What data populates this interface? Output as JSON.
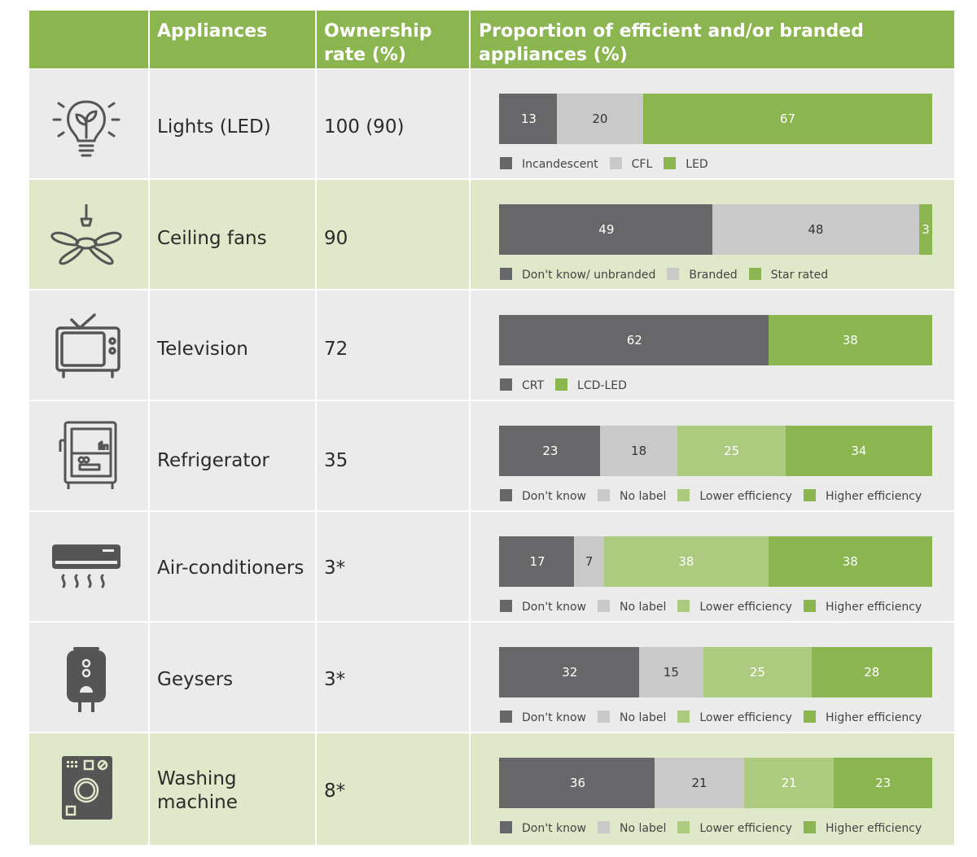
{
  "header": {
    "appliances": "Appliances",
    "ownership": "Ownership rate (%)",
    "proportion": "Proportion of efficient and/or branded appliances (%)"
  },
  "colors": {
    "header_green": "#8ab54f",
    "dark_grey": "#676769",
    "light_grey": "#c9c9c9",
    "light_green": "#accb7e",
    "green": "#8ab54f",
    "row_grey": "#ebebeb",
    "row_green": "#dfe9ca"
  },
  "rows": [
    {
      "name": "Lights (LED)",
      "ownership": "100 (90)",
      "icon": "light-bulb-icon"
    },
    {
      "name": "Ceiling fans",
      "ownership": "90",
      "icon": "ceiling-fan-icon"
    },
    {
      "name": "Television",
      "ownership": "72",
      "icon": "television-icon"
    },
    {
      "name": "Refrigerator",
      "ownership": "35",
      "icon": "refrigerator-icon"
    },
    {
      "name": "Air-conditioners",
      "ownership": "3*",
      "icon": "air-conditioner-icon"
    },
    {
      "name": "Geysers",
      "ownership": "3*",
      "icon": "geyser-icon"
    },
    {
      "name": "Washing machine",
      "ownership": "8*",
      "icon": "washing-machine-icon"
    }
  ],
  "chart_data": [
    {
      "type": "bar",
      "stacked": true,
      "orientation": "horizontal",
      "category": "Lights (LED)",
      "series": [
        {
          "name": "Incandescent",
          "value": 13
        },
        {
          "name": "CFL",
          "value": 20
        },
        {
          "name": "LED",
          "value": 67
        }
      ]
    },
    {
      "type": "bar",
      "stacked": true,
      "orientation": "horizontal",
      "category": "Ceiling fans",
      "series": [
        {
          "name": "Don't know/ unbranded",
          "value": 49
        },
        {
          "name": "Branded",
          "value": 48
        },
        {
          "name": "Star rated",
          "value": 3
        }
      ]
    },
    {
      "type": "bar",
      "stacked": true,
      "orientation": "horizontal",
      "category": "Television",
      "series": [
        {
          "name": "CRT",
          "value": 62
        },
        {
          "name": "LCD-LED",
          "value": 38
        }
      ]
    },
    {
      "type": "bar",
      "stacked": true,
      "orientation": "horizontal",
      "category": "Refrigerator",
      "series": [
        {
          "name": "Don't know",
          "value": 23
        },
        {
          "name": "No label",
          "value": 18
        },
        {
          "name": "Lower efficiency",
          "value": 25
        },
        {
          "name": "Higher efficiency",
          "value": 34
        }
      ]
    },
    {
      "type": "bar",
      "stacked": true,
      "orientation": "horizontal",
      "category": "Air-conditioners",
      "series": [
        {
          "name": "Don't know",
          "value": 17
        },
        {
          "name": "No label",
          "value": 7
        },
        {
          "name": "Lower efficiency",
          "value": 38
        },
        {
          "name": "Higher efficiency",
          "value": 38
        }
      ]
    },
    {
      "type": "bar",
      "stacked": true,
      "orientation": "horizontal",
      "category": "Geysers",
      "series": [
        {
          "name": "Don't know",
          "value": 32
        },
        {
          "name": "No label",
          "value": 15
        },
        {
          "name": "Lower efficiency",
          "value": 25
        },
        {
          "name": "Higher efficiency",
          "value": 28
        }
      ]
    },
    {
      "type": "bar",
      "stacked": true,
      "orientation": "horizontal",
      "category": "Washing machine",
      "series": [
        {
          "name": "Don't know",
          "value": 36
        },
        {
          "name": "No label",
          "value": 21
        },
        {
          "name": "Lower efficiency",
          "value": 21
        },
        {
          "name": "Higher efficiency",
          "value": 23
        }
      ]
    }
  ]
}
